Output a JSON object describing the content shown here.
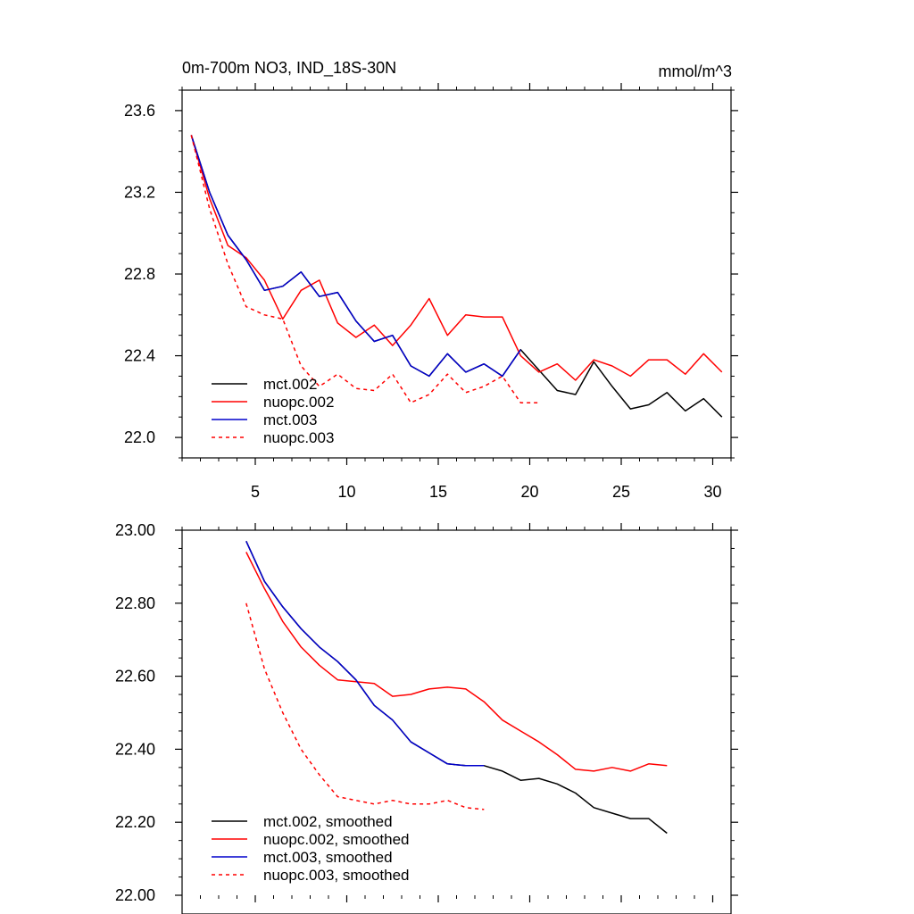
{
  "chart_data": [
    {
      "type": "line",
      "title_left": "0m-700m NO3, IND_18S-30N",
      "title_right": "mmol/m^3",
      "xlabel": "",
      "ylabel": "",
      "xlim": [
        1,
        31
      ],
      "ylim": [
        21.9,
        23.7
      ],
      "x_ticks": [
        5,
        10,
        15,
        20,
        25,
        30
      ],
      "y_ticks": [
        22.0,
        22.4,
        22.8,
        23.2,
        23.6
      ],
      "y_tick_labels": [
        "22.0",
        "22.4",
        "22.8",
        "23.2",
        "23.6"
      ],
      "legend_position": "bottom-left",
      "series": [
        {
          "name": "mct.002",
          "color": "#000000",
          "dash": "solid",
          "x": [
            1.5,
            2.5,
            3.5,
            4.5,
            5.5,
            6.5,
            7.5,
            8.5,
            9.5,
            10.5,
            11.5,
            12.5,
            13.5,
            14.5,
            15.5,
            16.5,
            17.5,
            18.5,
            19.5,
            20.5,
            21.5,
            22.5,
            23.5,
            24.5,
            25.5,
            26.5,
            27.5,
            28.5,
            29.5,
            30.5
          ],
          "y": [
            23.48,
            23.2,
            22.99,
            22.87,
            22.72,
            22.74,
            22.81,
            22.69,
            22.71,
            22.57,
            22.47,
            22.5,
            22.35,
            22.3,
            22.41,
            22.32,
            22.36,
            22.3,
            22.43,
            22.33,
            22.23,
            22.21,
            22.37,
            22.25,
            22.14,
            22.16,
            22.22,
            22.13,
            22.19,
            22.1
          ]
        },
        {
          "name": "nuopc.002",
          "color": "#ff0000",
          "dash": "solid",
          "x": [
            1.5,
            2.5,
            3.5,
            4.5,
            5.5,
            6.5,
            7.5,
            8.5,
            9.5,
            10.5,
            11.5,
            12.5,
            13.5,
            14.5,
            15.5,
            16.5,
            17.5,
            18.5,
            19.5,
            20.5,
            21.5,
            22.5,
            23.5,
            24.5,
            25.5,
            26.5,
            27.5,
            28.5,
            29.5,
            30.5
          ],
          "y": [
            23.48,
            23.17,
            22.94,
            22.88,
            22.77,
            22.58,
            22.72,
            22.77,
            22.56,
            22.49,
            22.55,
            22.45,
            22.55,
            22.68,
            22.5,
            22.6,
            22.59,
            22.59,
            22.4,
            22.32,
            22.36,
            22.28,
            22.38,
            22.35,
            22.3,
            22.38,
            22.38,
            22.31,
            22.41,
            22.32
          ]
        },
        {
          "name": "mct.003",
          "color": "#0000cc",
          "dash": "solid",
          "x": [
            1.5,
            2.5,
            3.5,
            4.5,
            5.5,
            6.5,
            7.5,
            8.5,
            9.5,
            10.5,
            11.5,
            12.5,
            13.5,
            14.5,
            15.5,
            16.5,
            17.5,
            18.5,
            19.5
          ],
          "y": [
            23.48,
            23.2,
            22.99,
            22.87,
            22.72,
            22.74,
            22.81,
            22.69,
            22.71,
            22.57,
            22.47,
            22.5,
            22.35,
            22.3,
            22.41,
            22.32,
            22.36,
            22.3,
            22.43
          ]
        },
        {
          "name": "nuopc.003",
          "color": "#ff0000",
          "dash": "dashed",
          "x": [
            1.5,
            2.5,
            3.5,
            4.5,
            5.5,
            6.5,
            7.5,
            8.5,
            9.5,
            10.5,
            11.5,
            12.5,
            13.5,
            14.5,
            15.5,
            16.5,
            17.5,
            18.5,
            19.5,
            20.5
          ],
          "y": [
            23.48,
            23.12,
            22.85,
            22.64,
            22.6,
            22.58,
            22.35,
            22.25,
            22.31,
            22.24,
            22.23,
            22.31,
            22.17,
            22.21,
            22.31,
            22.22,
            22.25,
            22.3,
            22.17,
            22.17
          ]
        }
      ]
    },
    {
      "type": "line",
      "xlabel": "",
      "ylabel": "",
      "xlim": [
        1,
        31
      ],
      "ylim": [
        22.0,
        23.0
      ],
      "x_ticks": [
        5,
        10,
        15,
        20,
        25,
        30
      ],
      "y_ticks": [
        22.0,
        22.2,
        22.4,
        22.6,
        22.8,
        23.0
      ],
      "y_tick_labels": [
        "22.00",
        "22.20",
        "22.40",
        "22.60",
        "22.80",
        "23.00"
      ],
      "legend_position": "bottom-left",
      "series": [
        {
          "name": "mct.002, smoothed",
          "color": "#000000",
          "dash": "solid",
          "x": [
            4.5,
            5.5,
            6.5,
            7.5,
            8.5,
            9.5,
            10.5,
            11.5,
            12.5,
            13.5,
            14.5,
            15.5,
            16.5,
            17.5,
            18.5,
            19.5,
            20.5,
            21.5,
            22.5,
            23.5,
            24.5,
            25.5,
            26.5,
            27.5
          ],
          "y": [
            22.97,
            22.86,
            22.79,
            22.73,
            22.68,
            22.64,
            22.59,
            22.52,
            22.48,
            22.42,
            22.39,
            22.36,
            22.355,
            22.355,
            22.34,
            22.315,
            22.32,
            22.305,
            22.28,
            22.24,
            22.225,
            22.21,
            22.21,
            22.17
          ]
        },
        {
          "name": "nuopc.002, smoothed",
          "color": "#ff0000",
          "dash": "solid",
          "x": [
            4.5,
            5.5,
            6.5,
            7.5,
            8.5,
            9.5,
            10.5,
            11.5,
            12.5,
            13.5,
            14.5,
            15.5,
            16.5,
            17.5,
            18.5,
            19.5,
            20.5,
            21.5,
            22.5,
            23.5,
            24.5,
            25.5,
            26.5,
            27.5
          ],
          "y": [
            22.94,
            22.84,
            22.75,
            22.68,
            22.63,
            22.59,
            22.585,
            22.58,
            22.545,
            22.55,
            22.565,
            22.57,
            22.565,
            22.53,
            22.48,
            22.45,
            22.42,
            22.385,
            22.345,
            22.34,
            22.35,
            22.34,
            22.36,
            22.355
          ]
        },
        {
          "name": "mct.003, smoothed",
          "color": "#0000cc",
          "dash": "solid",
          "x": [
            4.5,
            5.5,
            6.5,
            7.5,
            8.5,
            9.5,
            10.5,
            11.5,
            12.5,
            13.5,
            14.5,
            15.5,
            16.5,
            17.5
          ],
          "y": [
            22.97,
            22.86,
            22.79,
            22.73,
            22.68,
            22.64,
            22.59,
            22.52,
            22.48,
            22.42,
            22.39,
            22.36,
            22.355,
            22.355
          ]
        },
        {
          "name": "nuopc.003, smoothed",
          "color": "#ff0000",
          "dash": "dashed",
          "x": [
            4.5,
            5.5,
            6.5,
            7.5,
            8.5,
            9.5,
            10.5,
            11.5,
            12.5,
            13.5,
            14.5,
            15.5,
            16.5,
            17.5
          ],
          "y": [
            22.8,
            22.62,
            22.5,
            22.4,
            22.33,
            22.27,
            22.26,
            22.25,
            22.26,
            22.25,
            22.25,
            22.26,
            22.24,
            22.235
          ]
        }
      ]
    }
  ]
}
